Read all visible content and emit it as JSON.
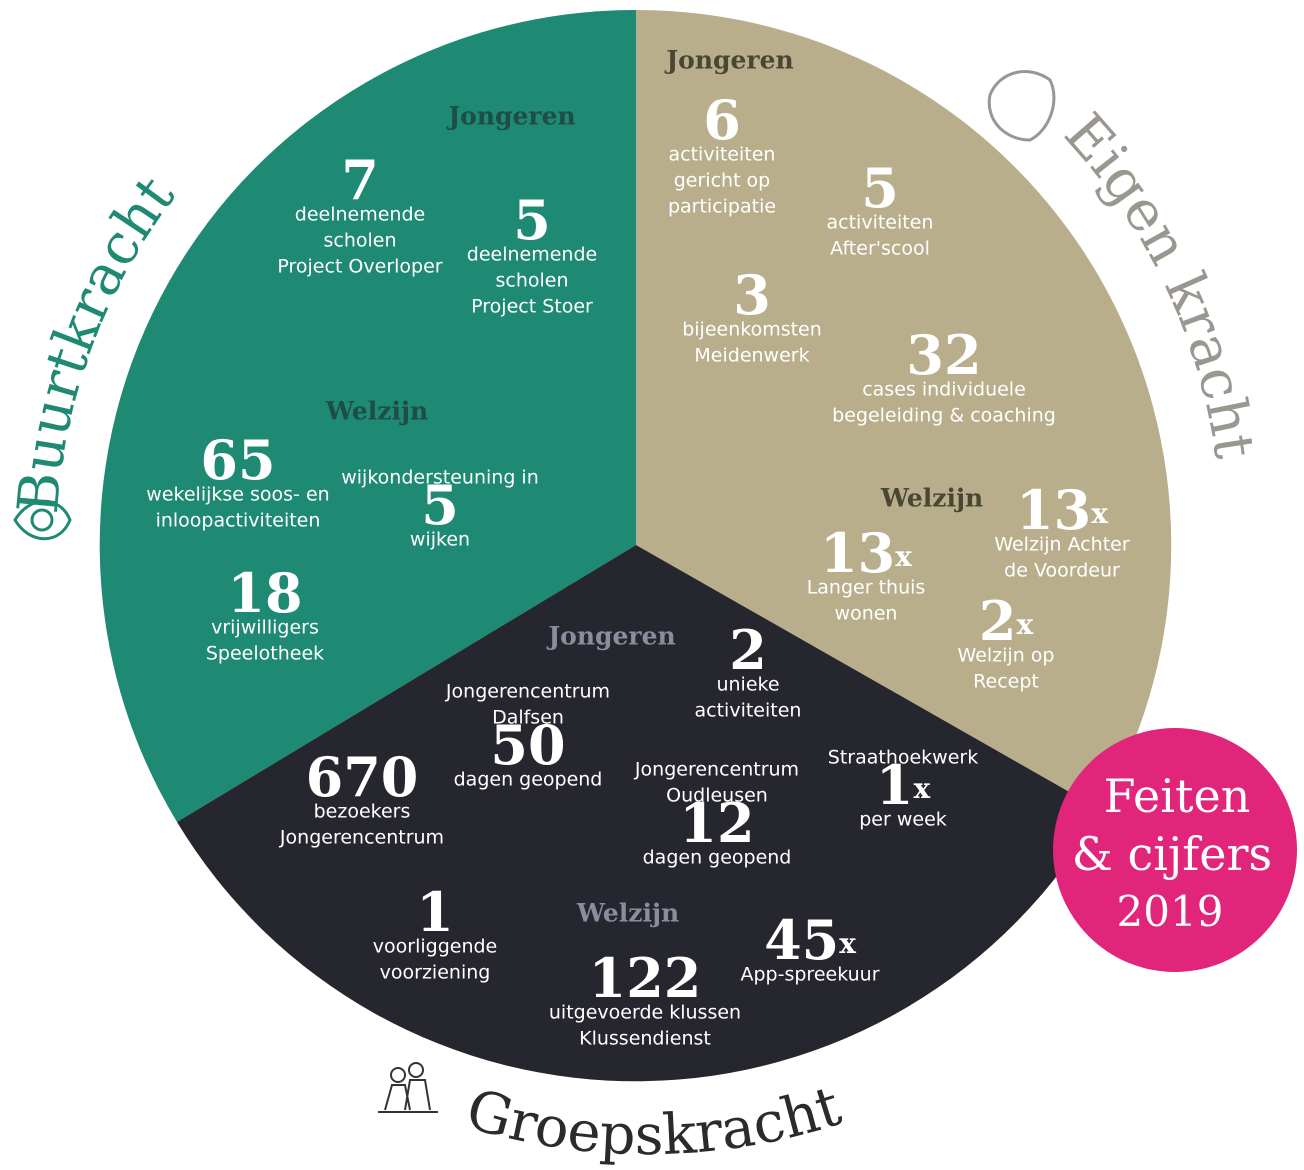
{
  "badge": {
    "line1": "Feiten",
    "line2": "& cijfers",
    "year": "2019"
  },
  "sections": [
    {
      "name": "Buurtkracht",
      "groups": [
        {
          "title": "Jongeren",
          "items": [
            {
              "number": "7",
              "lines": [
                "deelnemende",
                "scholen",
                "Project Overloper"
              ]
            },
            {
              "number": "5",
              "lines": [
                "deelnemende",
                "scholen",
                "Project Stoer"
              ]
            }
          ]
        },
        {
          "title": "Welzijn",
          "items": [
            {
              "number": "65",
              "lines": [
                "wekelijkse soos- en",
                "inloopactiviteiten"
              ]
            },
            {
              "number": "5",
              "pre": [
                "wijkondersteuning in"
              ],
              "lines": [
                "wijken"
              ]
            },
            {
              "number": "18",
              "lines": [
                "vrijwilligers",
                "Speelotheek"
              ]
            }
          ]
        }
      ]
    },
    {
      "name": "Eigen kracht",
      "groups": [
        {
          "title": "Jongeren",
          "items": [
            {
              "number": "6",
              "lines": [
                "activiteiten",
                "gericht op",
                "participatie"
              ]
            },
            {
              "number": "5",
              "lines": [
                "activiteiten",
                "After'scool"
              ]
            },
            {
              "number": "3",
              "lines": [
                "bijeenkomsten",
                "Meidenwerk"
              ]
            },
            {
              "number": "32",
              "lines": [
                "cases individuele",
                "begeleiding & coaching"
              ]
            }
          ]
        },
        {
          "title": "Welzijn",
          "items": [
            {
              "number": "13",
              "suffix": "x",
              "lines": [
                "Welzijn Achter",
                "de Voordeur"
              ]
            },
            {
              "number": "13",
              "suffix": "x",
              "lines": [
                "Langer thuis",
                "wonen"
              ]
            },
            {
              "number": "2",
              "suffix": "x",
              "lines": [
                "Welzijn op",
                "Recept"
              ]
            }
          ]
        }
      ]
    },
    {
      "name": "Groepskracht",
      "groups": [
        {
          "title": "Jongeren",
          "items": [
            {
              "number": "2",
              "lines": [
                "unieke",
                "activiteiten"
              ]
            },
            {
              "number": "50",
              "pre": [
                "Jongerencentrum",
                "Dalfsen"
              ],
              "lines": [
                "dagen geopend"
              ]
            },
            {
              "number": "670",
              "lines": [
                "bezoekers",
                "Jongerencentrum"
              ]
            },
            {
              "number": "12",
              "pre": [
                "Jongerencentrum",
                "Oudleusen"
              ],
              "lines": [
                "dagen geopend"
              ]
            },
            {
              "number": "1",
              "suffix": "x",
              "pre": [
                "Straathoekwerk"
              ],
              "lines": [
                "per week"
              ]
            }
          ]
        },
        {
          "title": "Welzijn",
          "items": [
            {
              "number": "1",
              "lines": [
                "voorliggende",
                "voorziening"
              ]
            },
            {
              "number": "122",
              "lines": [
                "uitgevoerde klussen",
                "Klussendienst"
              ]
            },
            {
              "number": "45",
              "suffix": "x",
              "lines": [
                "App-spreekuur"
              ]
            }
          ]
        }
      ]
    }
  ]
}
